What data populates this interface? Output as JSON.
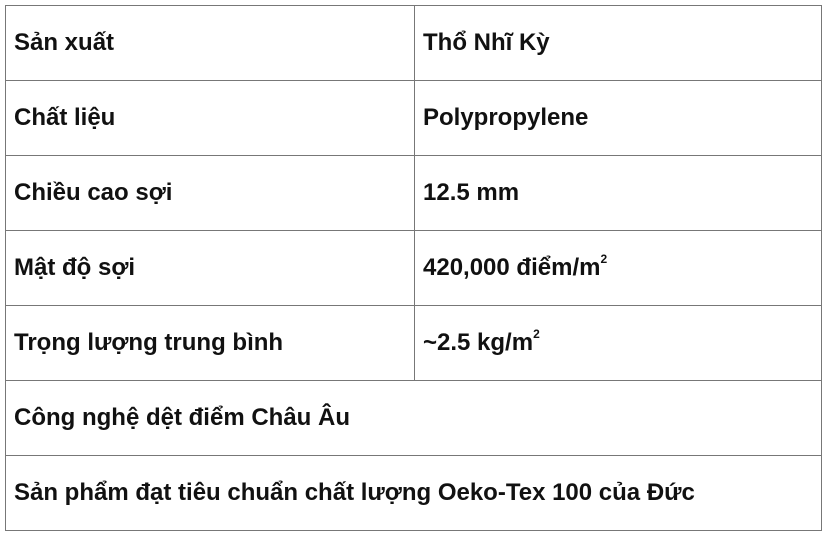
{
  "rows": [
    {
      "label": "Sản xuất",
      "value": "Thổ Nhĩ Kỳ",
      "sup": ""
    },
    {
      "label": "Chất liệu",
      "value": "Polypropylene",
      "sup": ""
    },
    {
      "label": "Chiều cao sợi",
      "value": "12.5 mm",
      "sup": ""
    },
    {
      "label": "Mật độ sợi",
      "value": "420,000 điểm/m",
      "sup": "2"
    },
    {
      "label": "Trọng lượng trung bình",
      "value": "~2.5 kg/m",
      "sup": "2"
    }
  ],
  "full_rows": [
    "Công nghệ dệt điểm Châu Âu",
    "Sản phẩm đạt tiêu chuẩn chất lượng Oeko-Tex 100 của Đức"
  ]
}
